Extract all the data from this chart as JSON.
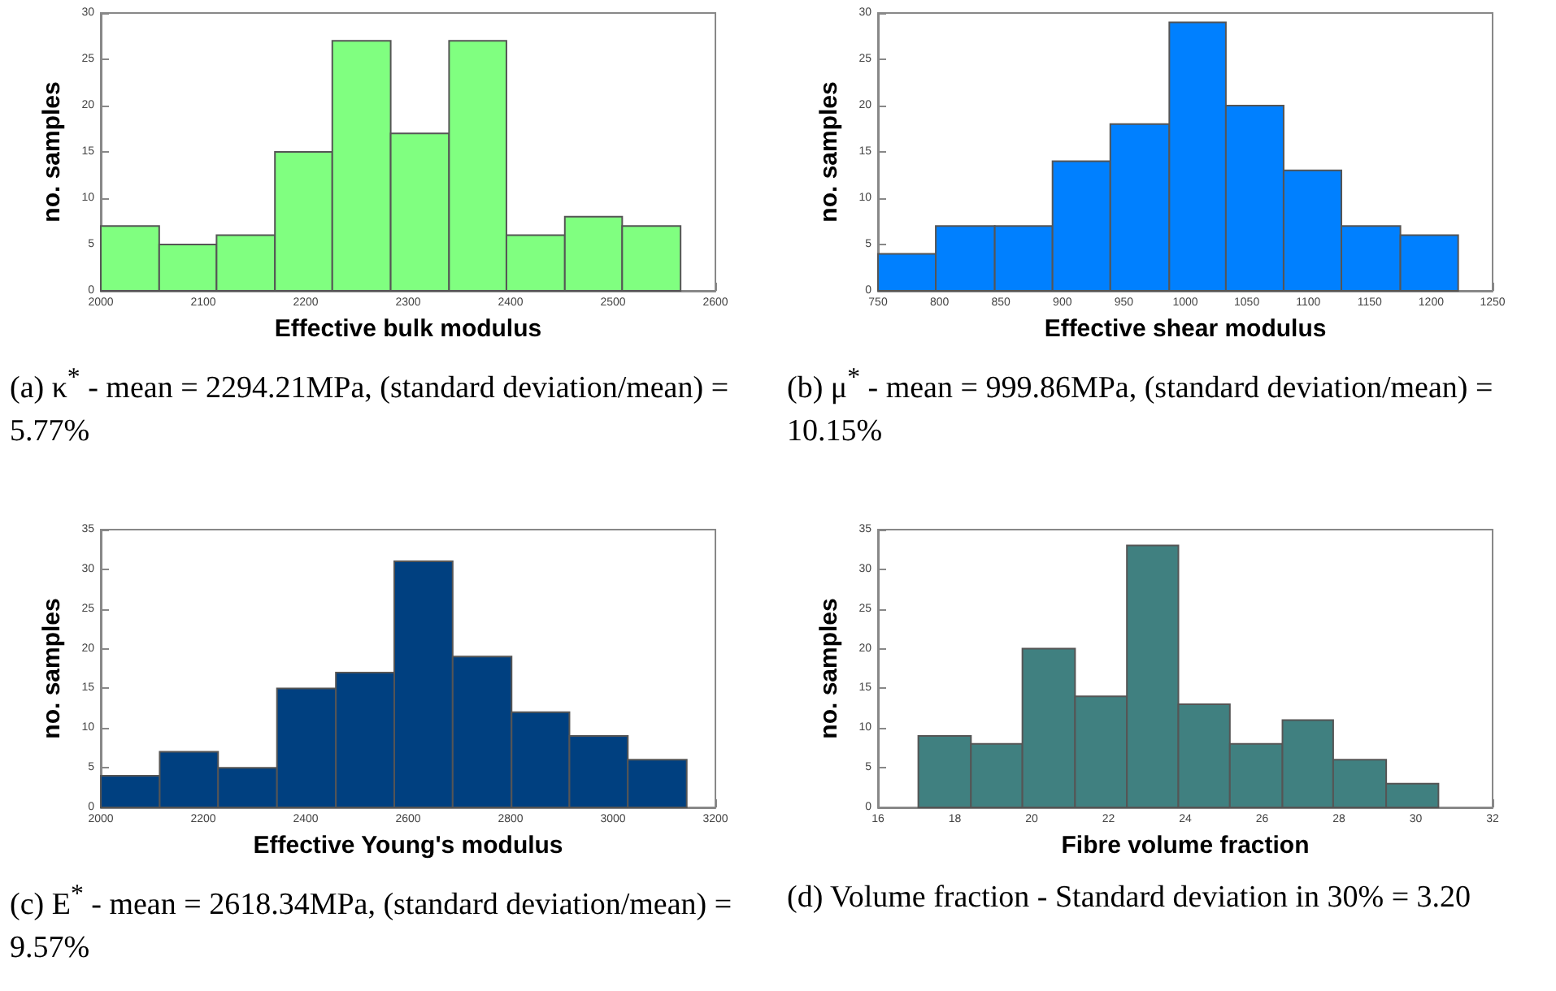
{
  "chart_data": [
    {
      "type": "histogram",
      "xlabel": "Effective bulk modulus",
      "ylabel": "no. samples",
      "color": "#80ff80",
      "bins": [
        2000,
        2057,
        2113,
        2170,
        2226,
        2283,
        2340,
        2396,
        2453,
        2509,
        2566
      ],
      "values": [
        7,
        5,
        6,
        15,
        27,
        17,
        27,
        6,
        8,
        7
      ],
      "xlim": [
        2000,
        2600
      ],
      "xticks": [
        2000,
        2100,
        2200,
        2300,
        2400,
        2500,
        2600
      ],
      "ylim": [
        0,
        30
      ],
      "yticks": [
        0,
        5,
        10,
        15,
        20,
        25,
        30
      ],
      "annotations": [
        "(a) κ$^{*}$ - mean = 2294.21MPa, (standard deviation/mean) = 5.77%"
      ]
    },
    {
      "type": "histogram",
      "xlabel": "Effective shear modulus",
      "ylabel": "no. samples",
      "color": "#0080ff",
      "bins": [
        750,
        797,
        845,
        892,
        939,
        987,
        1033,
        1080,
        1127,
        1175,
        1222
      ],
      "values": [
        4,
        7,
        7,
        14,
        18,
        29,
        20,
        13,
        7,
        6
      ],
      "xlim": [
        750,
        1250
      ],
      "xticks": [
        750,
        800,
        850,
        900,
        950,
        1000,
        1050,
        1100,
        1150,
        1200,
        1250
      ],
      "ylim": [
        0,
        30
      ],
      "yticks": [
        0,
        5,
        10,
        15,
        20,
        25,
        30
      ],
      "annotations": [
        "(b) μ$^{*}$ - mean = 999.86MPa, (standard deviation/mean) = 10.15%"
      ]
    },
    {
      "type": "histogram",
      "xlabel": "Effective Young's modulus",
      "ylabel": "no. samples",
      "color": "#004080",
      "bins": [
        2000,
        2115,
        2229,
        2344,
        2459,
        2573,
        2687,
        2802,
        2915,
        3029,
        3144
      ],
      "values": [
        4,
        7,
        5,
        15,
        17,
        31,
        19,
        12,
        9,
        6
      ],
      "xlim": [
        2000,
        3200
      ],
      "xticks": [
        2000,
        2200,
        2400,
        2600,
        2800,
        3000,
        3200
      ],
      "ylim": [
        0,
        35
      ],
      "yticks": [
        0,
        5,
        10,
        15,
        20,
        25,
        30,
        35
      ],
      "annotations": [
        "(c) E$^{*}$ - mean = 2618.34MPa, (standard deviation/mean) = 9.57%"
      ]
    },
    {
      "type": "histogram",
      "xlabel": "Fibre volume fraction",
      "ylabel": "no. samples",
      "color": "#408080",
      "bins": [
        17.05,
        18.42,
        19.76,
        21.13,
        22.48,
        23.82,
        25.16,
        26.53,
        27.85,
        29.23,
        30.59
      ],
      "values": [
        9,
        8,
        20,
        14,
        33,
        13,
        8,
        11,
        6,
        3
      ],
      "xlim": [
        16,
        32
      ],
      "xticks": [
        16,
        18,
        20,
        22,
        24,
        26,
        28,
        30,
        32
      ],
      "ylim": [
        0,
        35
      ],
      "yticks": [
        0,
        5,
        10,
        15,
        20,
        25,
        30,
        35
      ],
      "annotations": [
        "(d) Volume fraction - Standard deviation in 30% = 3.20"
      ]
    }
  ]
}
